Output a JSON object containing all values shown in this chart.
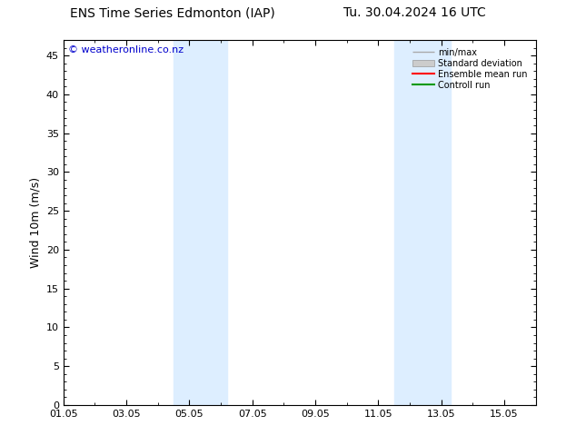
{
  "title_left": "ENS Time Series Edmonton (IAP)",
  "title_right": "Tu. 30.04.2024 16 UTC",
  "ylabel": "Wind 10m (m/s)",
  "watermark": "© weatheronline.co.nz",
  "xlim_start": 0,
  "xlim_end": 15,
  "ylim_min": 0,
  "ylim_max": 47,
  "yticks": [
    0,
    5,
    10,
    15,
    20,
    25,
    30,
    35,
    40,
    45
  ],
  "xtick_positions": [
    0,
    2,
    4,
    6,
    8,
    10,
    12,
    14
  ],
  "xtick_labels": [
    "01.05",
    "03.05",
    "05.05",
    "07.05",
    "09.05",
    "11.05",
    "13.05",
    "15.05"
  ],
  "shade_bands": [
    {
      "x_start": 3.5,
      "x_end": 5.2
    },
    {
      "x_start": 10.5,
      "x_end": 12.3
    }
  ],
  "shade_color": "#ddeeff",
  "background_color": "#ffffff",
  "legend_items": [
    {
      "label": "min/max",
      "color": "#aaaaaa",
      "type": "minmax"
    },
    {
      "label": "Standard deviation",
      "color": "#cccccc",
      "type": "fill"
    },
    {
      "label": "Ensemble mean run",
      "color": "#ff0000",
      "type": "line"
    },
    {
      "label": "Controll run",
      "color": "#009900",
      "type": "line"
    }
  ],
  "title_fontsize": 10,
  "axis_fontsize": 9,
  "tick_fontsize": 8,
  "watermark_fontsize": 8,
  "border_color": "#000000"
}
